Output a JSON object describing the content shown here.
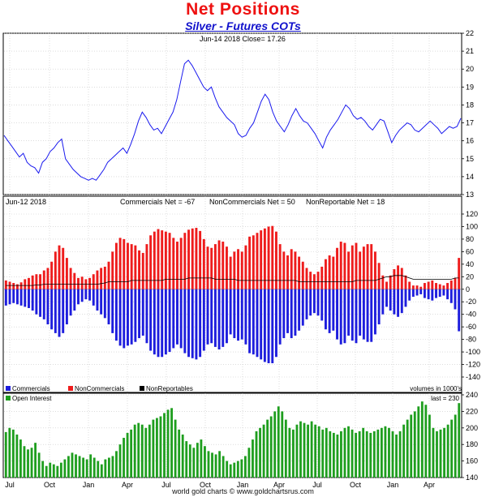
{
  "header": {
    "title": "Net Positions",
    "subtitle": "Silver - Futures COTs"
  },
  "footer": "world gold charts © www.goldchartsrus.com",
  "colors": {
    "price_line": "#1a1aee",
    "commercials": "#1d1ddd",
    "noncommercials": "#ee1c1c",
    "nonreportables": "#000000",
    "open_interest": "#1e9e1e",
    "grid": "#c8c8c8"
  },
  "chart_data": [
    {
      "type": "line",
      "name": "price",
      "annotation": "Jun-14  2018    Close= 17.26",
      "ylim": [
        13,
        22
      ],
      "yticks": [
        13,
        14,
        15,
        16,
        17,
        18,
        19,
        20,
        21,
        22
      ],
      "series": [
        {
          "values": [
            16.3,
            16.0,
            15.7,
            15.4,
            15.1,
            15.3,
            14.8,
            14.6,
            14.5,
            14.2,
            14.8,
            15.0,
            15.4,
            15.6,
            15.9,
            16.1,
            15.0,
            14.7,
            14.4,
            14.2,
            14.0,
            13.9,
            13.8,
            13.9,
            13.8,
            14.1,
            14.4,
            14.8,
            15.0,
            15.2,
            15.4,
            15.6,
            15.3,
            15.8,
            16.4,
            17.1,
            17.6,
            17.3,
            16.9,
            16.6,
            16.7,
            16.4,
            16.8,
            17.2,
            17.6,
            18.3,
            19.3,
            20.3,
            20.5,
            20.2,
            19.8,
            19.4,
            19.0,
            18.8,
            19.0,
            18.4,
            17.9,
            17.6,
            17.3,
            17.1,
            16.9,
            16.4,
            16.2,
            16.3,
            16.7,
            17.0,
            17.6,
            18.2,
            18.6,
            18.3,
            17.6,
            17.1,
            16.8,
            16.5,
            16.9,
            17.4,
            17.8,
            17.4,
            17.1,
            17.0,
            16.7,
            16.4,
            16.0,
            15.6,
            16.2,
            16.6,
            16.9,
            17.2,
            17.6,
            18.0,
            17.8,
            17.4,
            17.2,
            17.3,
            17.1,
            16.8,
            16.6,
            16.9,
            17.2,
            17.1,
            16.5,
            15.9,
            16.3,
            16.6,
            16.8,
            17.0,
            16.9,
            16.6,
            16.5,
            16.7,
            16.9,
            17.1,
            16.9,
            16.7,
            16.4,
            16.6,
            16.8,
            16.7,
            16.8,
            17.26
          ]
        }
      ]
    },
    {
      "type": "bar",
      "name": "net_positions",
      "header": {
        "date": "Jun-12  2018",
        "commercials_net": "Commercials Net = -67",
        "noncommercials_net": "NonCommercials Net = 50",
        "nonreportable_net": "NonReportable Net = 18"
      },
      "ylim": [
        -140,
        120
      ],
      "yticks": [
        -140,
        -120,
        -100,
        -80,
        -60,
        -40,
        -20,
        0,
        20,
        40,
        60,
        80,
        100,
        120
      ],
      "legend": [
        "Commercials",
        "NonCommercials",
        "NonReportables"
      ],
      "units_note": "volumes in 1000's",
      "series": [
        {
          "name": "NonCommercials",
          "values": [
            14,
            12,
            10,
            8,
            11,
            16,
            18,
            22,
            24,
            24,
            30,
            34,
            44,
            60,
            70,
            66,
            50,
            34,
            26,
            18,
            20,
            16,
            18,
            24,
            30,
            34,
            36,
            44,
            60,
            74,
            82,
            80,
            74,
            72,
            70,
            62,
            58,
            72,
            86,
            92,
            96,
            94,
            92,
            90,
            82,
            76,
            82,
            90,
            95,
            97,
            98,
            93,
            80,
            68,
            66,
            72,
            78,
            76,
            68,
            52,
            60,
            64,
            60,
            70,
            84,
            86,
            90,
            94,
            97,
            100,
            101,
            92,
            72,
            60,
            54,
            64,
            60,
            52,
            44,
            34,
            28,
            24,
            28,
            36,
            48,
            54,
            52,
            66,
            76,
            74,
            60,
            70,
            74,
            60,
            68,
            72,
            72,
            60,
            42,
            22,
            12,
            22,
            32,
            38,
            34,
            22,
            12,
            6,
            6,
            4,
            10,
            12,
            14,
            10,
            8,
            6,
            10,
            14,
            18,
            50
          ]
        },
        {
          "name": "Commercials",
          "values": [
            -26,
            -24,
            -22,
            -24,
            -26,
            -28,
            -30,
            -34,
            -40,
            -44,
            -48,
            -56,
            -64,
            -70,
            -76,
            -70,
            -56,
            -42,
            -34,
            -24,
            -20,
            -16,
            -18,
            -26,
            -34,
            -40,
            -46,
            -56,
            -70,
            -82,
            -90,
            -94,
            -90,
            -88,
            -84,
            -78,
            -74,
            -86,
            -98,
            -104,
            -108,
            -108,
            -104,
            -100,
            -94,
            -88,
            -94,
            -102,
            -108,
            -110,
            -112,
            -108,
            -98,
            -88,
            -86,
            -92,
            -96,
            -92,
            -86,
            -72,
            -78,
            -82,
            -80,
            -88,
            -102,
            -104,
            -108,
            -112,
            -116,
            -118,
            -118,
            -108,
            -88,
            -78,
            -70,
            -78,
            -74,
            -66,
            -58,
            -48,
            -42,
            -38,
            -42,
            -50,
            -64,
            -70,
            -66,
            -80,
            -88,
            -86,
            -74,
            -82,
            -86,
            -74,
            -80,
            -84,
            -84,
            -72,
            -56,
            -40,
            -28,
            -34,
            -40,
            -44,
            -38,
            -28,
            -18,
            -12,
            -10,
            -8,
            -14,
            -16,
            -18,
            -14,
            -12,
            -10,
            -16,
            -22,
            -32,
            -67
          ]
        },
        {
          "name": "NonReportables",
          "values": [
            6,
            6,
            6,
            6,
            6,
            6,
            6,
            6,
            7,
            7,
            8,
            8,
            8,
            8,
            8,
            8,
            8,
            8,
            8,
            8,
            8,
            8,
            8,
            8,
            8,
            9,
            10,
            12,
            12,
            12,
            12,
            12,
            12,
            14,
            14,
            14,
            14,
            14,
            14,
            14,
            14,
            14,
            16,
            16,
            16,
            16,
            16,
            16,
            18,
            18,
            18,
            18,
            18,
            18,
            18,
            16,
            16,
            16,
            16,
            16,
            16,
            14,
            14,
            14,
            14,
            14,
            14,
            14,
            14,
            14,
            14,
            14,
            14,
            14,
            14,
            14,
            14,
            12,
            12,
            12,
            12,
            12,
            12,
            12,
            12,
            12,
            12,
            12,
            12,
            12,
            12,
            12,
            14,
            14,
            14,
            14,
            14,
            14,
            16,
            18,
            20,
            20,
            22,
            22,
            22,
            20,
            18,
            16,
            16,
            16,
            16,
            16,
            16,
            16,
            16,
            16,
            16,
            16,
            18,
            18
          ]
        }
      ]
    },
    {
      "type": "bar",
      "name": "open_interest",
      "legend": [
        "Open Interest"
      ],
      "last_label": "last = 230",
      "ylim": [
        140,
        240
      ],
      "yticks": [
        140,
        160,
        180,
        200,
        220,
        240
      ],
      "x_ticks": [
        "Jul",
        "Oct",
        "Jan",
        "Apr",
        "Jul",
        "Oct",
        "Jan",
        "Apr",
        "Jul",
        "Oct",
        "Jan",
        "Apr"
      ],
      "series": [
        {
          "name": "Open Interest",
          "values": [
            195,
            200,
            198,
            192,
            186,
            178,
            174,
            176,
            182,
            170,
            160,
            154,
            158,
            156,
            154,
            158,
            162,
            166,
            170,
            168,
            166,
            164,
            162,
            168,
            164,
            160,
            156,
            162,
            164,
            166,
            172,
            180,
            188,
            194,
            198,
            204,
            206,
            204,
            200,
            204,
            210,
            212,
            214,
            218,
            222,
            224,
            210,
            198,
            192,
            184,
            180,
            176,
            182,
            186,
            178,
            172,
            170,
            168,
            172,
            166,
            160,
            156,
            158,
            160,
            162,
            166,
            176,
            186,
            196,
            200,
            204,
            210,
            214,
            220,
            226,
            220,
            210,
            200,
            198,
            204,
            208,
            206,
            204,
            208,
            204,
            202,
            198,
            200,
            196,
            194,
            192,
            196,
            200,
            202,
            198,
            194,
            196,
            200,
            196,
            194,
            196,
            198,
            200,
            202,
            200,
            196,
            192,
            196,
            204,
            210,
            216,
            220,
            226,
            232,
            228,
            216,
            200,
            196,
            198,
            200,
            204,
            210,
            216,
            230
          ]
        }
      ]
    }
  ]
}
